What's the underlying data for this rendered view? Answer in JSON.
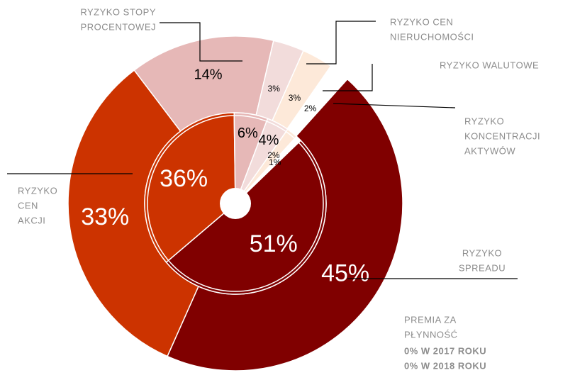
{
  "chart_data": {
    "type": "nested-donut",
    "categories": [
      [
        "RYZYKO",
        "SPREADU"
      ],
      [
        "RYZYKO",
        "CEN",
        "AKCJI"
      ],
      [
        "RYZYKO STOPY",
        "PROCENTOWEJ"
      ],
      [
        "RYZYKO CEN",
        "NIERUCHOMOŚCI"
      ],
      [
        "RYZYKO WALUTOWE"
      ],
      [
        "RYZYKO",
        "KONCENTRACJI",
        "AKTYWÓW"
      ]
    ],
    "colors": [
      "#800000",
      "#cc3300",
      "#e6b8b7",
      "#f2dcdb",
      "#fde9d9",
      "#ffffff"
    ],
    "series": [
      {
        "values": [
          45,
          33,
          14,
          3,
          3,
          2
        ],
        "value_labels": [
          "45%",
          "33%",
          "14%",
          "3%",
          "3%",
          "2%"
        ]
      },
      {
        "values": [
          51,
          36,
          6,
          4,
          2,
          1
        ],
        "value_labels": [
          "51%",
          "36%",
          "6%",
          "4%",
          "2%",
          "1%"
        ]
      }
    ],
    "annotations": [
      [
        "PREMIA ZA",
        "PŁYNNOŚĆ"
      ],
      [
        "0% W 2017 ROKU",
        "0% W 2018 ROKU"
      ]
    ]
  }
}
